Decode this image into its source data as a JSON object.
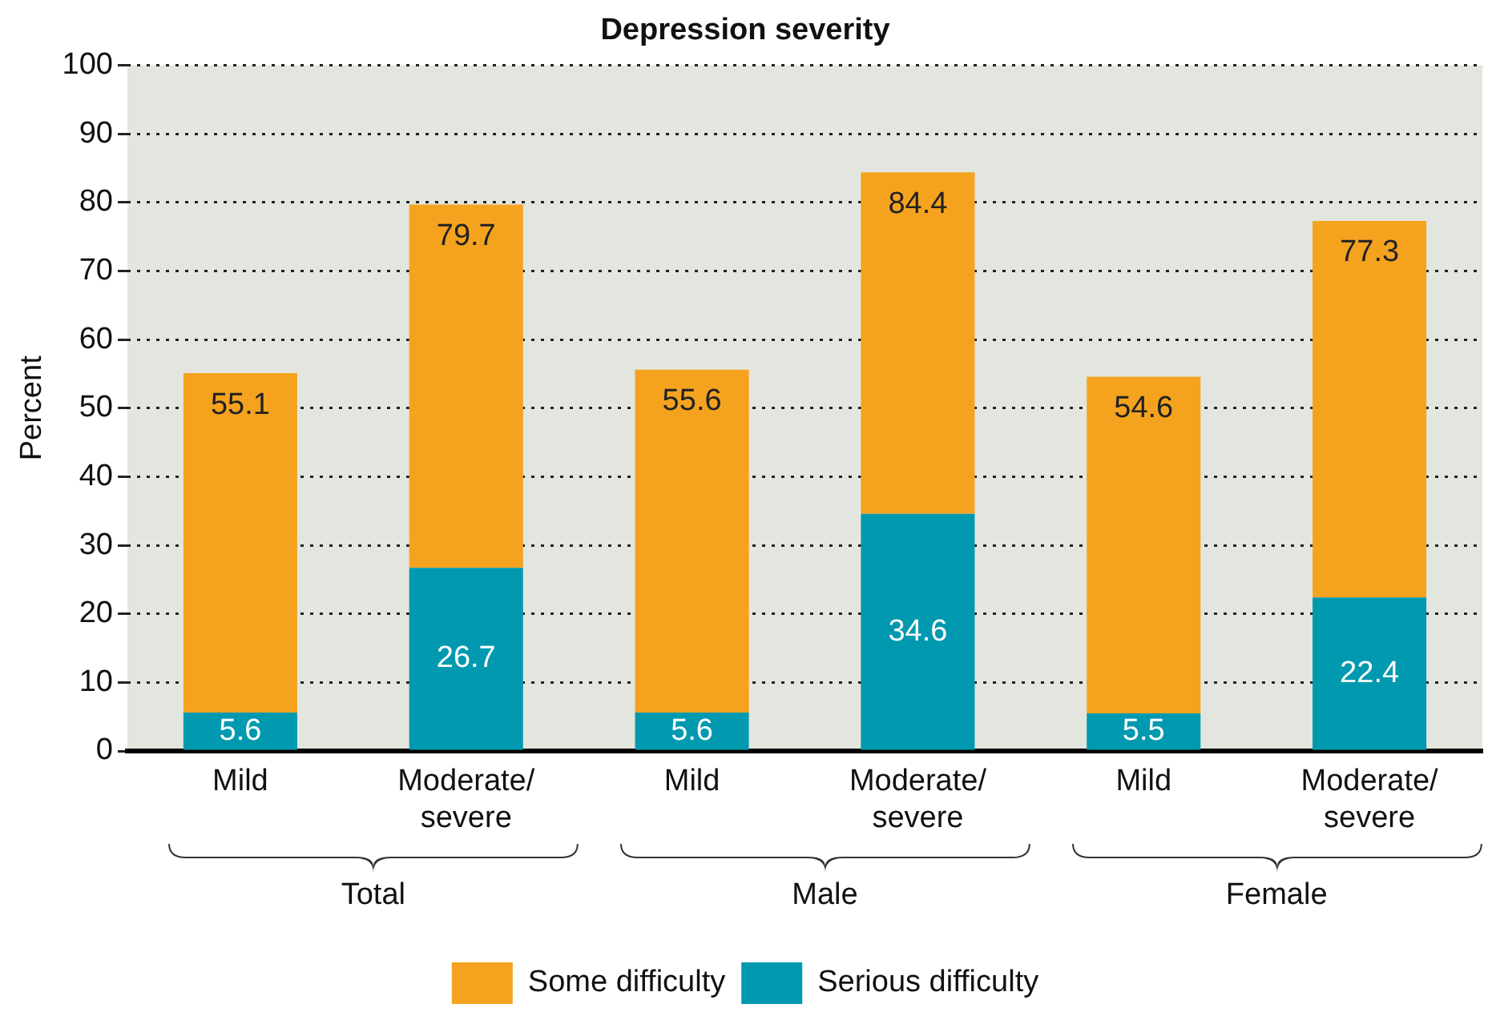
{
  "chart_data": {
    "type": "bar",
    "title": "Depression severity",
    "ylabel": "Percent",
    "categories": [
      "Mild",
      "Moderate/ severe",
      "Mild",
      "Moderate/ severe",
      "Mild",
      "Moderate/ severe"
    ],
    "stacked": true,
    "series": [
      {
        "name": "Serious difficulty",
        "color": "#0099b0",
        "values": [
          5.6,
          26.7,
          5.6,
          34.6,
          5.5,
          22.4
        ],
        "value_labels": [
          "5.6",
          "26.7",
          "5.6",
          "34.6",
          "5.5",
          "22.4"
        ]
      },
      {
        "name": "Some difficulty",
        "color": "#f5a31f",
        "values": [
          49.5,
          53.0,
          50.0,
          49.8,
          49.1,
          54.9
        ]
      }
    ],
    "totals": [
      "55.1",
      "79.7",
      "55.6",
      "84.4",
      "54.6",
      "77.3"
    ],
    "ylim": [
      0,
      100
    ],
    "yticks": [
      0,
      10,
      20,
      30,
      40,
      50,
      60,
      70,
      80,
      90,
      100
    ],
    "grid": "y",
    "legend": "bottom",
    "annotations": [
      "Total",
      "Male",
      "Female"
    ]
  }
}
